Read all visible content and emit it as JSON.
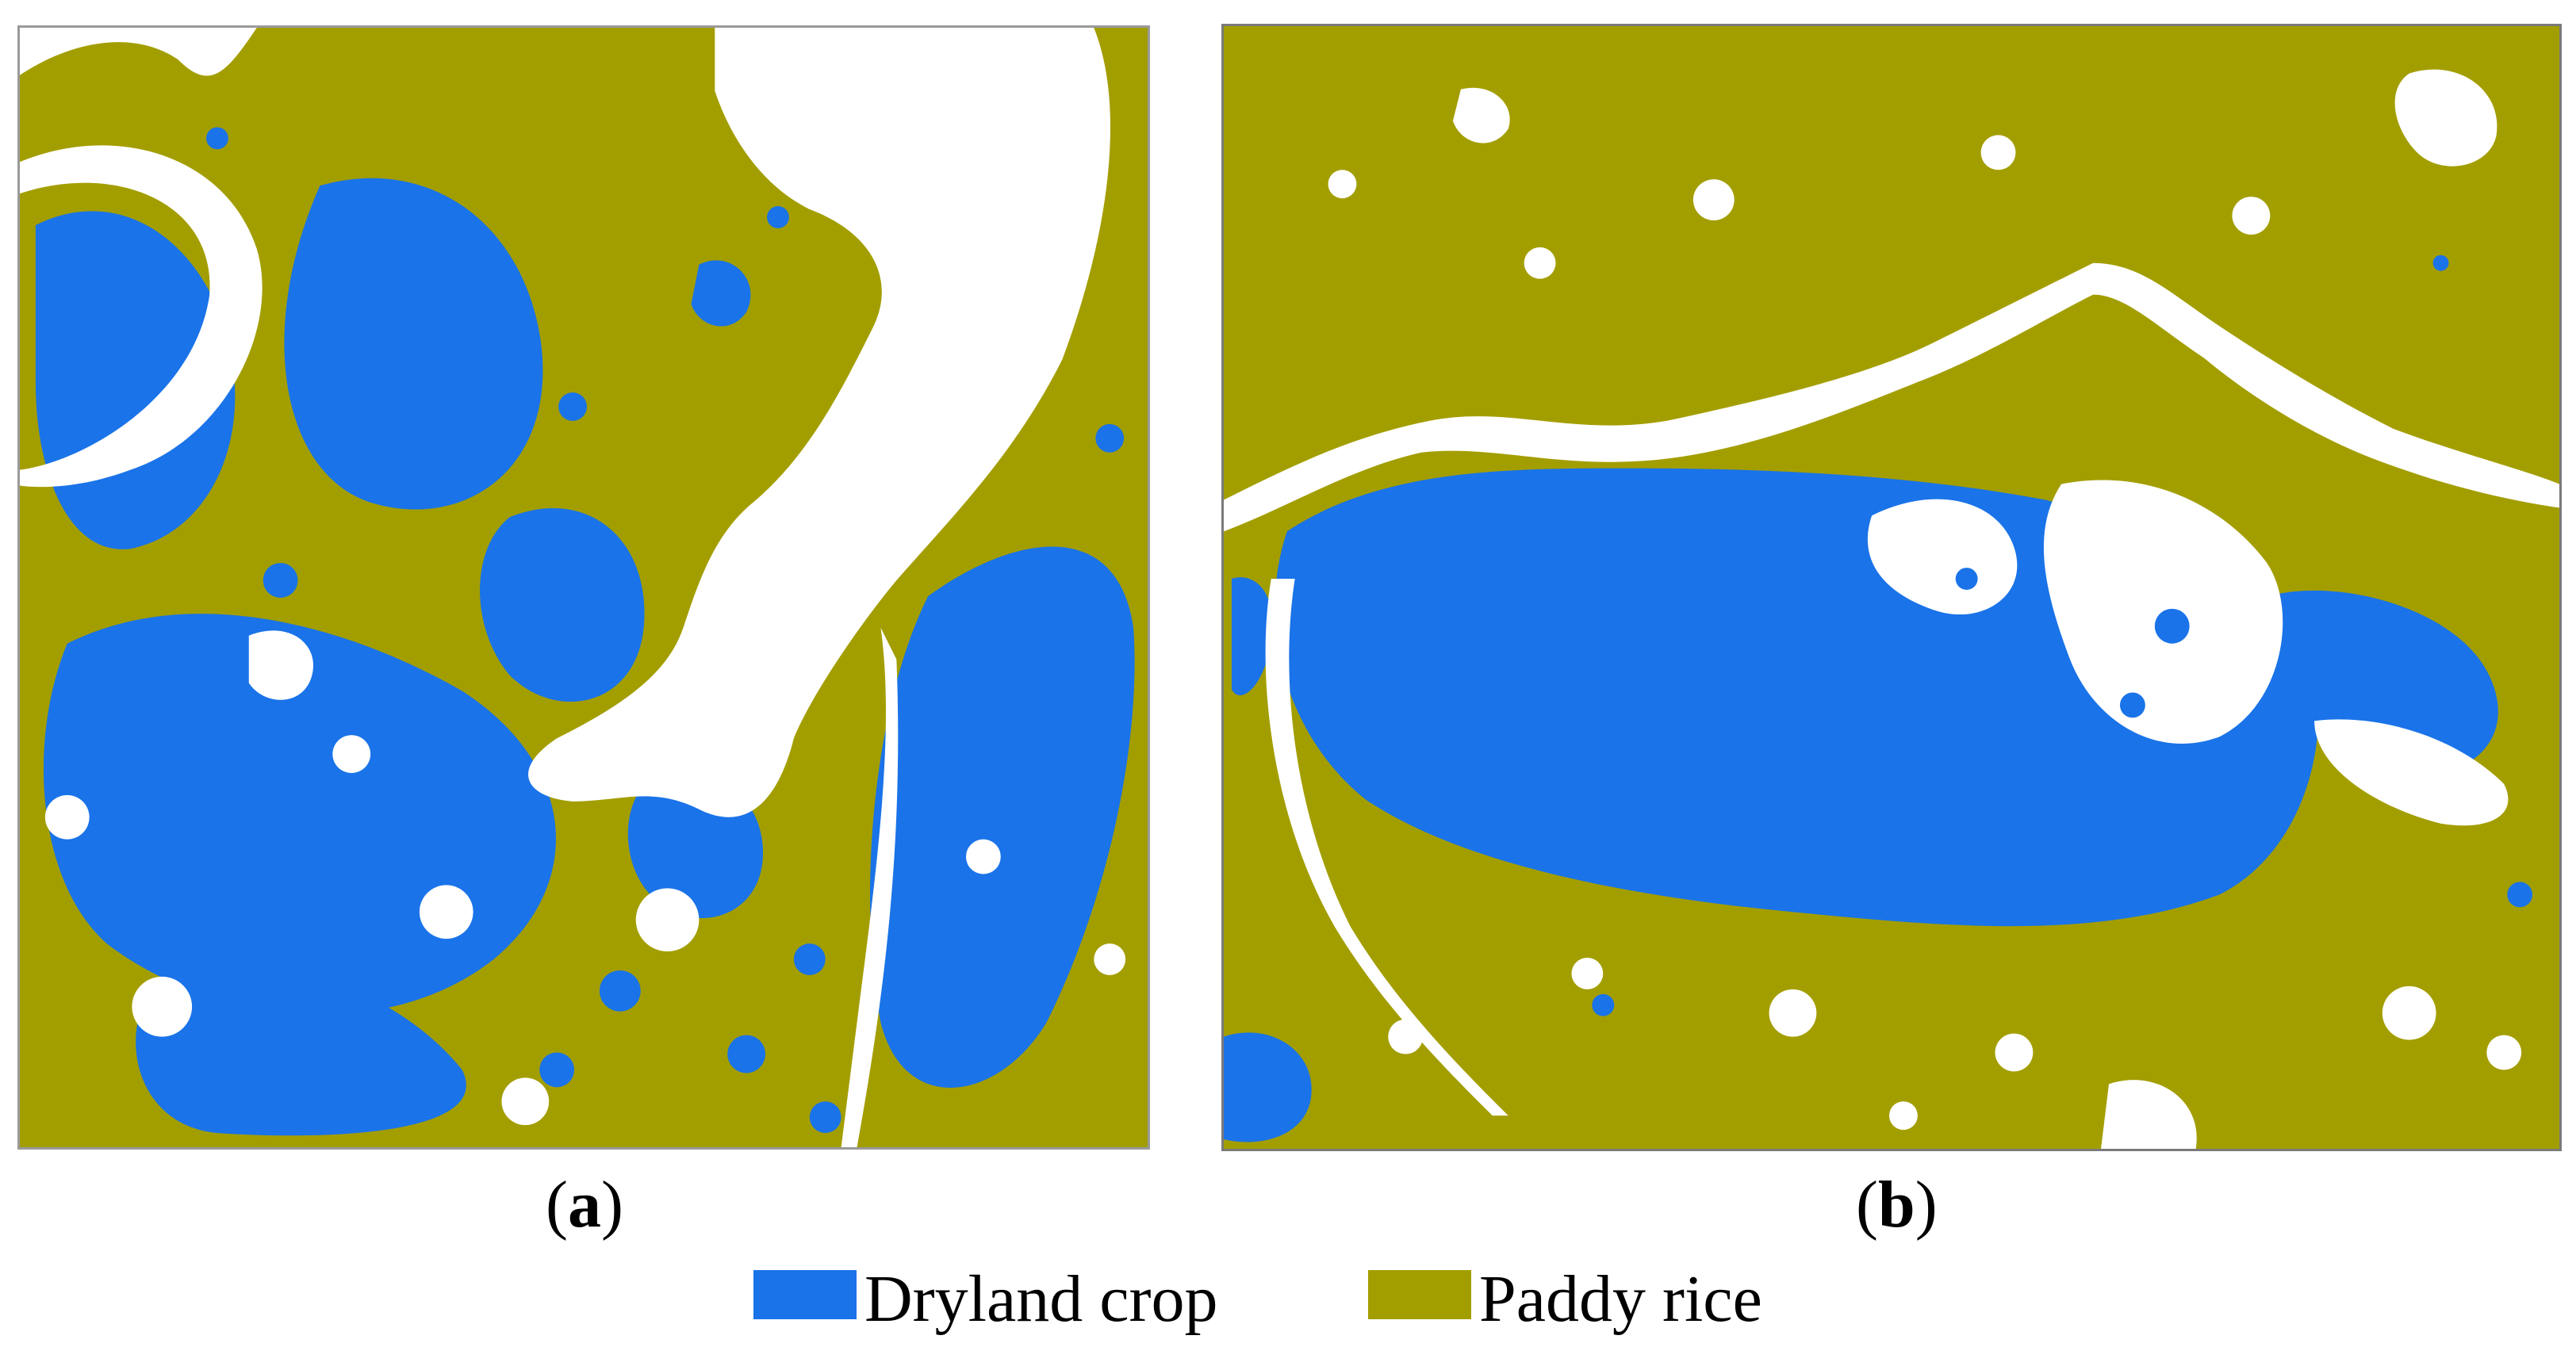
{
  "colors": {
    "dryland_crop": "#1a73e8",
    "paddy_rice": "#a39e00",
    "background": "#ffffff"
  },
  "panels": [
    {
      "id": "a",
      "caption_open": "(",
      "caption_letter": "a",
      "caption_close": ")"
    },
    {
      "id": "b",
      "caption_open": "(",
      "caption_letter": "b",
      "caption_close": ")"
    }
  ],
  "legend": {
    "items": [
      {
        "label": "Dryland crop",
        "color": "#1a73e8"
      },
      {
        "label": "Paddy rice",
        "color": "#a39e00"
      }
    ]
  }
}
